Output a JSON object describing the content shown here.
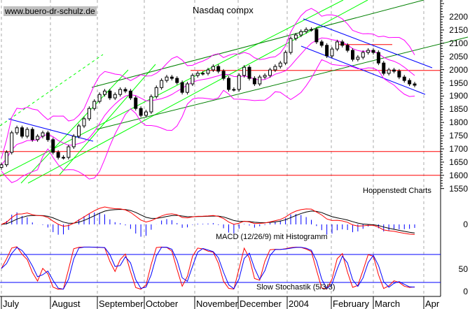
{
  "header": {
    "site": "www.buero-dr-schulz.de",
    "title": "Nasdaq compx",
    "credit": "Hoppenstedt Charts"
  },
  "chart_data": [
    {
      "type": "candlestick",
      "title": "Nasdaq compx",
      "close": [
        1640,
        1687,
        1761,
        1780,
        1748,
        1774,
        1735,
        1748,
        1761,
        1735,
        1687,
        1668,
        1668,
        1708,
        1748,
        1787,
        1814,
        1853,
        1880,
        1906,
        1919,
        1893,
        1906,
        1925,
        1919,
        1893,
        1853,
        1827,
        1840,
        1898,
        1932,
        1959,
        1972,
        1967,
        1951,
        1914,
        1946,
        1978,
        1986,
        1986,
        1999,
        2012,
        1994,
        1967,
        1925,
        1925,
        1978,
        2009,
        1967,
        1946,
        1972,
        1978,
        1999,
        2012,
        2025,
        2065,
        2118,
        2131,
        2144,
        2152,
        2152,
        2105,
        2092,
        2052,
        2078,
        2105,
        2092,
        2073,
        2039,
        2047,
        2065,
        2073,
        2065,
        2025,
        1986,
        1999,
        1994,
        1972,
        1959,
        1946,
        1941
      ],
      "y_ticks": [
        1550,
        1600,
        1650,
        1700,
        1750,
        1800,
        1850,
        1900,
        1950,
        2000,
        2050,
        2100,
        2150,
        2200
      ],
      "ylim": [
        1540,
        2260
      ],
      "horizontal_lines": [
        1600,
        1690,
        1997,
        2095
      ],
      "x_tick_labels": [
        "July",
        "August",
        "September",
        "October",
        "November",
        "December",
        "2004",
        "February",
        "March",
        "Apr"
      ],
      "overlays": [
        "Bollinger bands",
        "trend lines"
      ],
      "grid": "vertical dashed"
    },
    {
      "type": "macd",
      "label": "MACD (12/26/9) mit Histogramm",
      "y_ticks": [
        "0"
      ]
    },
    {
      "type": "stochastic",
      "label": "Slow Stochastik (5/3/3)",
      "y_ticks": [
        "0",
        "50"
      ],
      "levels": [
        20,
        80
      ],
      "ylim": [
        0,
        100
      ]
    }
  ],
  "colors": {
    "bollinger": "#ff00ff",
    "trend_light": "#00ff00",
    "trend_dark": "#008000",
    "channel": "#0000ff",
    "level": "#ff0000",
    "macd_signal": "#000000",
    "macd": "#ff0000",
    "histogram": "#0000ff",
    "stoch_k": "#ff0000",
    "stoch_d": "#0000ff"
  }
}
